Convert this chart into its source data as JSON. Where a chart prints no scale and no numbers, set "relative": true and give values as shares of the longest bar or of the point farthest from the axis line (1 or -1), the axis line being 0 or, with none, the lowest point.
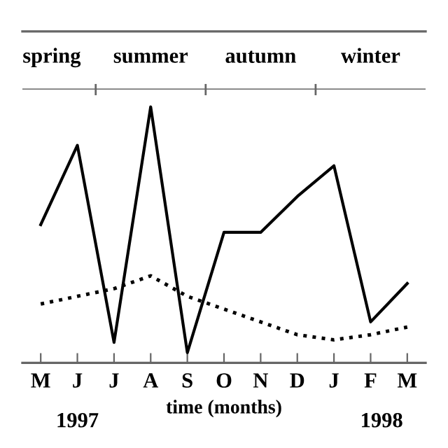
{
  "chart_data": {
    "type": "line",
    "xlabel": "time (months)",
    "categories": [
      "M",
      "J",
      "J",
      "A",
      "S",
      "O",
      "N",
      "D",
      "J",
      "F",
      "M"
    ],
    "relative": true,
    "series": [
      {
        "color": "#000000",
        "line_style": "solid",
        "values": [
          0.54,
          0.85,
          0.08,
          1,
          0.04,
          0.51,
          0.51,
          0.65,
          0.77,
          0.16,
          0.31
        ]
      },
      {
        "color": "#000000",
        "line_style": "dotted",
        "values": [
          0.23,
          0.26,
          0.29,
          0.34,
          0.26,
          0.21,
          0.16,
          0.11,
          0.09,
          0.11,
          0.14
        ]
      }
    ],
    "annotations": [
      "spring",
      "summer",
      "autumn",
      "winter",
      "1997",
      "1998"
    ],
    "grid": false,
    "marker": "none"
  }
}
